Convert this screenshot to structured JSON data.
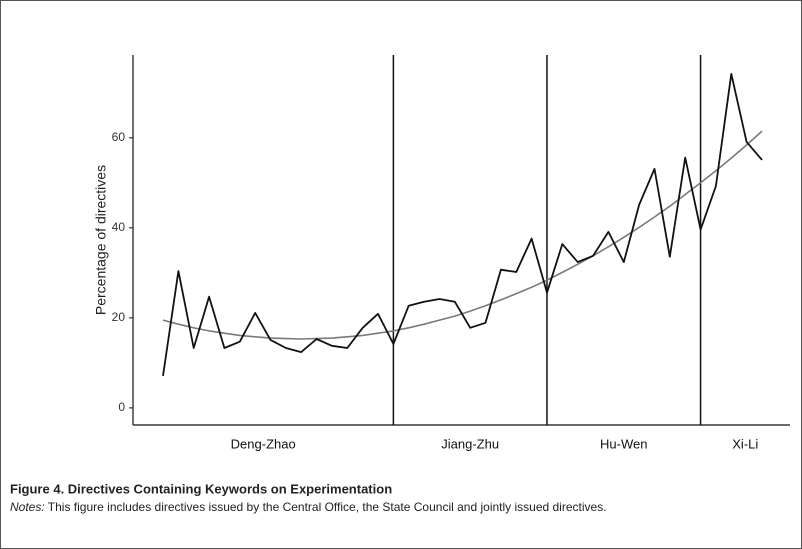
{
  "chart_data": {
    "type": "line",
    "y_label": "Percentage of directives",
    "caption_title": "Figure 4.  Directives Containing Keywords on Experimentation",
    "caption_notes_label": "Notes:",
    "caption_notes": " This figure includes directives issued by the Central Office, the State Council and jointly issued directives.",
    "categories": [
      null,
      null,
      null,
      null,
      null,
      null,
      null,
      null,
      null,
      null,
      null,
      null,
      null,
      null,
      null,
      null,
      null,
      null,
      null,
      null,
      null,
      null,
      null,
      null,
      null,
      null,
      null,
      null,
      null,
      null,
      null,
      null,
      null,
      null,
      null,
      null,
      null,
      null,
      null,
      null
    ],
    "series": [
      {
        "color": "#111111",
        "values": [
          7.1,
          30.4,
          13.3,
          24.7,
          13.3,
          14.7,
          21.1,
          15.1,
          13.3,
          12.4,
          15.3,
          13.8,
          13.3,
          17.8,
          20.9,
          14.2,
          22.7,
          23.6,
          24.2,
          23.6,
          17.8,
          18.9,
          30.7,
          30.2,
          37.6,
          25.6,
          36.4,
          32.4,
          33.8,
          39.1,
          32.4,
          45.1,
          53.1,
          33.6,
          55.6,
          39.6,
          49.3,
          74.2,
          59.1,
          55.1
        ]
      },
      {
        "color": "#7a7a7a",
        "values": [
          19.5,
          18.6,
          17.8,
          17.1,
          16.6,
          16.1,
          15.8,
          15.5,
          15.4,
          15.3,
          15.4,
          15.5,
          15.8,
          16.1,
          16.6,
          17.1,
          17.8,
          18.6,
          19.5,
          20.4,
          21.5,
          22.7,
          24.0,
          25.4,
          26.8,
          28.4,
          30.1,
          31.9,
          33.8,
          35.8,
          37.9,
          40.1,
          42.4,
          44.8,
          47.4,
          50.0,
          52.7,
          55.5,
          58.4,
          61.5
        ]
      }
    ],
    "periods": [
      "Deng-Zhao",
      "Jiang-Zhu",
      "Hu-Wen",
      "Xi-Li"
    ],
    "dividers": [
      15,
      25,
      35
    ],
    "ylim": [
      -3.8,
      78.4
    ],
    "yticks": [
      0,
      20,
      40,
      60
    ]
  }
}
